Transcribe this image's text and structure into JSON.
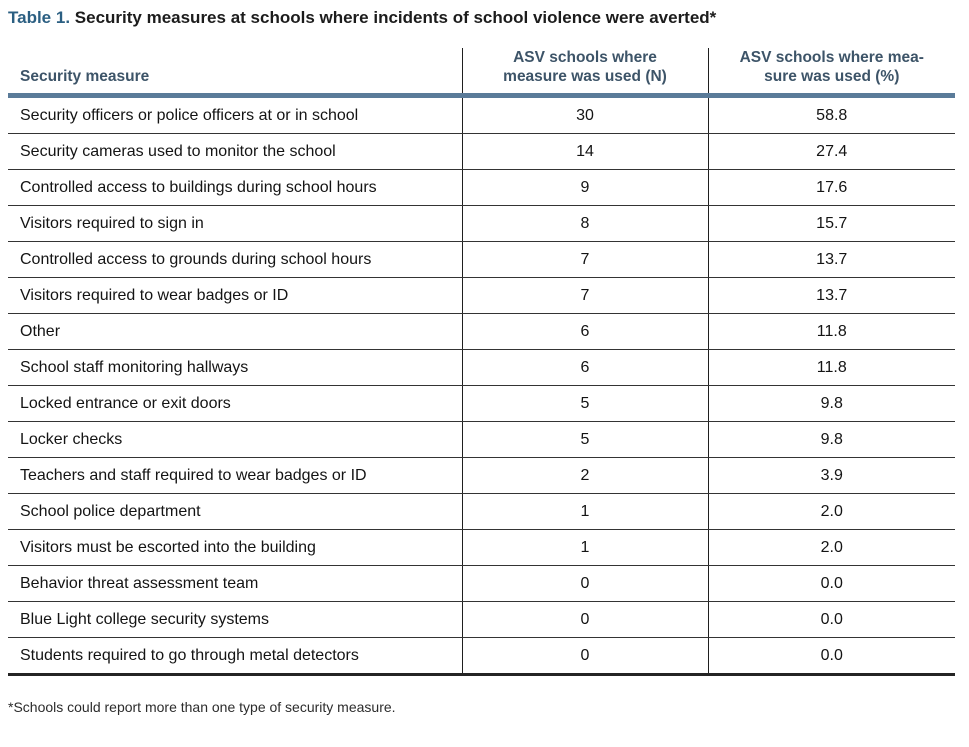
{
  "title": {
    "label": "Table 1.",
    "text": " Security measures at schools where incidents of school violence were averted*"
  },
  "table": {
    "columns": {
      "measure": "Security measure",
      "n_line1": "ASV schools where",
      "n_line2": "measure was used (N)",
      "pct_line1": "ASV schools where mea-",
      "pct_line2": "sure was used (%)"
    },
    "rows": [
      {
        "measure": "Security officers or police officers at or in school",
        "n": "30",
        "pct": "58.8"
      },
      {
        "measure": "Security cameras used to monitor the school",
        "n": "14",
        "pct": "27.4"
      },
      {
        "measure": "Controlled access to buildings during school hours",
        "n": "9",
        "pct": "17.6"
      },
      {
        "measure": "Visitors required to sign in",
        "n": "8",
        "pct": "15.7"
      },
      {
        "measure": "Controlled access to grounds during school hours",
        "n": "7",
        "pct": "13.7"
      },
      {
        "measure": "Visitors required to wear badges or ID",
        "n": "7",
        "pct": "13.7"
      },
      {
        "measure": "Other",
        "n": "6",
        "pct": "11.8"
      },
      {
        "measure": "School staff monitoring hallways",
        "n": "6",
        "pct": "11.8"
      },
      {
        "measure": "Locked entrance or exit doors",
        "n": "5",
        "pct": "9.8"
      },
      {
        "measure": "Locker checks",
        "n": "5",
        "pct": "9.8"
      },
      {
        "measure": "Teachers and staff required to wear badges or ID",
        "n": "2",
        "pct": "3.9"
      },
      {
        "measure": "School police department",
        "n": "1",
        "pct": "2.0"
      },
      {
        "measure": "Visitors must be escorted into the building",
        "n": "1",
        "pct": "2.0"
      },
      {
        "measure": "Behavior threat assessment team",
        "n": "0",
        "pct": "0.0"
      },
      {
        "measure": "Blue Light college security systems",
        "n": "0",
        "pct": "0.0"
      },
      {
        "measure": "Students required to go through metal detectors",
        "n": "0",
        "pct": "0.0"
      }
    ]
  },
  "footnote": "*Schools could report more than one type of security measure.",
  "colors": {
    "title_accent": "#2b5f82",
    "header_text": "#3d5468",
    "header_rule": "#5a7b99",
    "row_rule": "#343434"
  }
}
